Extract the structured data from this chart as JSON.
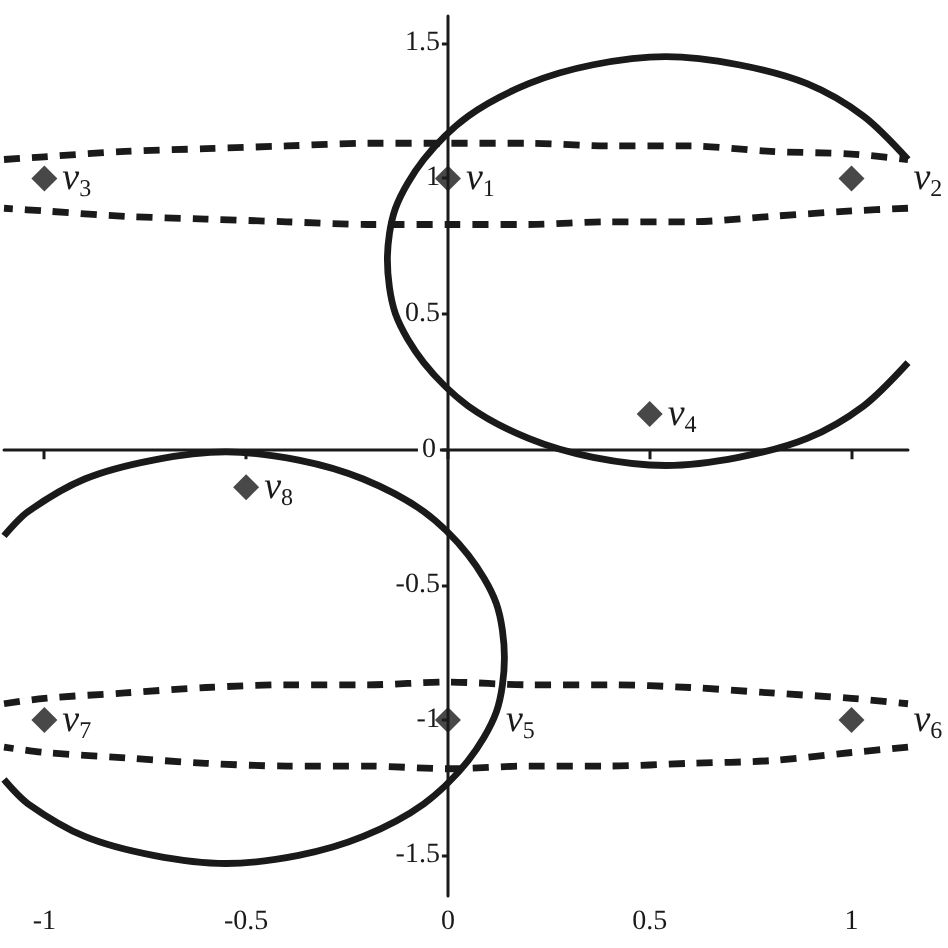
{
  "chart_data": {
    "type": "scatter",
    "marker": "diamond",
    "xlim": [
      -1.1,
      1.14
    ],
    "ylim": [
      -1.65,
      1.6
    ],
    "xticks": [
      -1,
      -0.5,
      0,
      0.5,
      1
    ],
    "yticks": [
      -1.5,
      -1,
      -0.5,
      0,
      0.5,
      1,
      1.5
    ],
    "series": [
      {
        "color": "#1a1a1a",
        "x": [
          0,
          1,
          -1,
          0.5,
          0,
          1,
          -1,
          -0.5
        ],
        "values": [
          1,
          1,
          1,
          0.13,
          -1,
          -1,
          -1,
          -0.14
        ]
      },
      {
        "type": "line",
        "color": "#1a1a1a",
        "marker": "none",
        "line_style": "solid",
        "x": [
          1.14,
          1.03,
          0.89,
          0.72,
          0.54,
          0.36,
          0.2,
          0.05,
          -0.06,
          -0.13,
          -0.15,
          -0.13,
          -0.06,
          0.05,
          0.2,
          0.36,
          0.54,
          0.72,
          0.89,
          1.03,
          1.14
        ],
        "values": [
          1.07,
          1.23,
          1.35,
          1.42,
          1.45,
          1.42,
          1.35,
          1.23,
          1.07,
          0.89,
          0.7,
          0.5,
          0.32,
          0.16,
          0.04,
          -0.03,
          -0.06,
          -0.03,
          0.04,
          0.16,
          0.32
        ]
      },
      {
        "type": "line",
        "color": "#1a1a1a",
        "marker": "none",
        "line_style": "solid",
        "x": [
          -1.1,
          -1.04,
          -0.9,
          -0.73,
          -0.55,
          -0.37,
          -0.21,
          -0.06,
          0.05,
          0.12,
          0.14,
          0.12,
          0.05,
          -0.06,
          -0.21,
          -0.37,
          -0.55,
          -0.73,
          -0.9,
          -1.04,
          -1.1
        ],
        "values": [
          -1.22,
          -1.31,
          -1.43,
          -1.5,
          -1.53,
          -1.5,
          -1.43,
          -1.31,
          -1.15,
          -0.97,
          -0.77,
          -0.57,
          -0.39,
          -0.23,
          -0.11,
          -0.04,
          -0.01,
          -0.04,
          -0.11,
          -0.23,
          -0.32
        ]
      },
      {
        "type": "line",
        "color": "#1a1a1a",
        "marker": "none",
        "line_style": "dashed",
        "x": [
          -1.1,
          -1.0,
          -0.8,
          -0.6,
          -0.4,
          -0.2,
          0,
          0.2,
          0.4,
          0.6,
          0.8,
          1.0,
          1.14,
          null,
          1.14,
          1.0,
          0.8,
          0.6,
          0.4,
          0.2,
          0,
          -0.2,
          -0.4,
          -0.6,
          -0.8,
          -1.0,
          -1.1
        ],
        "values": [
          1.07,
          1.08,
          1.1,
          1.11,
          1.12,
          1.13,
          1.13,
          1.13,
          1.12,
          1.12,
          1.1,
          1.09,
          1.07,
          null,
          0.89,
          0.88,
          0.86,
          0.84,
          0.84,
          0.83,
          0.83,
          0.83,
          0.84,
          0.85,
          0.86,
          0.88,
          0.89
        ]
      },
      {
        "type": "line",
        "color": "#1a1a1a",
        "marker": "none",
        "line_style": "dashed",
        "x": [
          -1.1,
          -1.0,
          -0.8,
          -0.6,
          -0.4,
          -0.2,
          0,
          0.2,
          0.4,
          0.6,
          0.8,
          1.0,
          1.14,
          null,
          1.14,
          1.0,
          0.8,
          0.6,
          0.4,
          0.2,
          0,
          -0.2,
          -0.4,
          -0.6,
          -0.8,
          -1.0,
          -1.1
        ],
        "values": [
          -0.94,
          -0.92,
          -0.9,
          -0.88,
          -0.87,
          -0.87,
          -0.86,
          -0.87,
          -0.87,
          -0.88,
          -0.9,
          -0.92,
          -0.94,
          null,
          -1.1,
          -1.12,
          -1.15,
          -1.16,
          -1.17,
          -1.17,
          -1.18,
          -1.17,
          -1.17,
          -1.16,
          -1.14,
          -1.12,
          -1.1
        ]
      }
    ],
    "annotations": [
      {
        "text": "v$_{1}$",
        "x": 0,
        "y": 1
      },
      {
        "text": "v$_{2}$",
        "x": 1,
        "y": 1
      },
      {
        "text": "v$_{3}$",
        "x": -1,
        "y": 1
      },
      {
        "text": "v$_{4}$",
        "x": 0.5,
        "y": 0.13
      },
      {
        "text": "v$_{5}$",
        "x": 0,
        "y": -1
      },
      {
        "text": "v$_{6}$",
        "x": 1,
        "y": -1
      },
      {
        "text": "v$_{7}$",
        "x": -1,
        "y": -1
      },
      {
        "text": "v$_{8}$",
        "x": -0.5,
        "y": -0.14
      }
    ]
  }
}
